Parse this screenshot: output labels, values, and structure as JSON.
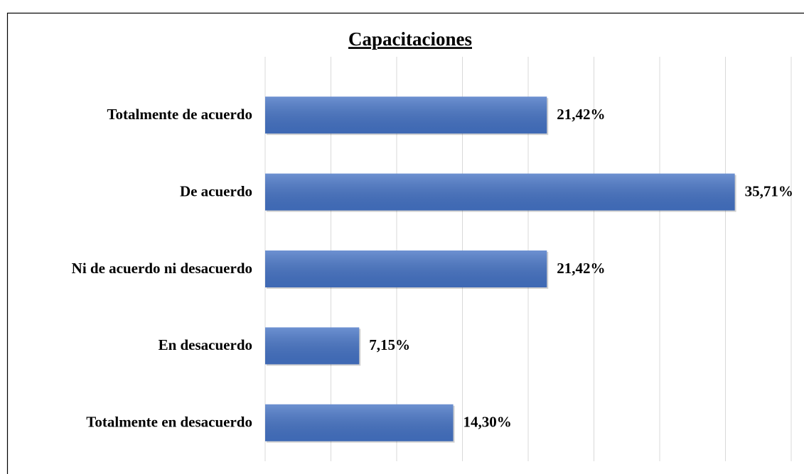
{
  "chart_data": {
    "type": "barh",
    "title": "Capacitaciones",
    "categories": [
      "Totalmente de acuerdo",
      "De acuerdo",
      "Ni de acuerdo ni desacuerdo",
      "En desacuerdo",
      "Totalmente en desacuerdo"
    ],
    "values": [
      21.42,
      35.71,
      21.42,
      7.15,
      14.3
    ],
    "value_labels": [
      "21,42%",
      "35,71%",
      "21,42%",
      "7,15%",
      "14,30%"
    ],
    "color": "#4472c4",
    "xlim": [
      0,
      40
    ],
    "xticks": [
      0,
      5,
      10,
      15,
      20,
      25,
      30,
      35,
      40
    ],
    "grid": true
  }
}
